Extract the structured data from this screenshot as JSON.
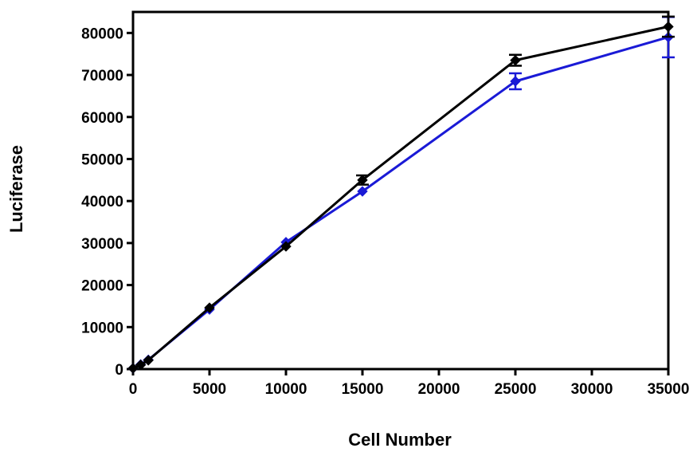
{
  "chart_data": {
    "type": "line",
    "title": "",
    "xlabel": "Cell Number",
    "ylabel": "Luciferase",
    "xlim": [
      0,
      35000
    ],
    "ylim": [
      0,
      85000
    ],
    "xticks": [
      0,
      5000,
      10000,
      15000,
      20000,
      25000,
      30000,
      35000
    ],
    "yticks": [
      0,
      10000,
      20000,
      30000,
      40000,
      50000,
      60000,
      70000,
      80000
    ],
    "x_tick_labels": [
      "0",
      "5000",
      "10000",
      "15000",
      "20000",
      "25000",
      "30000",
      "35000"
    ],
    "y_tick_labels": [
      "0",
      "10000",
      "20000",
      "30000",
      "40000",
      "50000",
      "60000",
      "70000",
      "80000"
    ],
    "grid": false,
    "legend": "none",
    "series": [
      {
        "color": "#1a1ad6",
        "marker": "diamond",
        "x": [
          0,
          500,
          1000,
          5000,
          10000,
          15000,
          25000,
          35000
        ],
        "y": [
          200,
          1100,
          2200,
          14200,
          30200,
          42300,
          68500,
          79000
        ],
        "error": [
          0,
          0,
          0,
          0,
          0,
          0,
          1900,
          4800
        ]
      },
      {
        "color": "#000000",
        "marker": "diamond",
        "x": [
          0,
          500,
          1000,
          5000,
          10000,
          15000,
          25000,
          35000
        ],
        "y": [
          200,
          1000,
          2100,
          14600,
          29200,
          45000,
          73500,
          81500
        ],
        "error": [
          0,
          0,
          0,
          0,
          0,
          1100,
          1300,
          2400
        ]
      }
    ]
  }
}
